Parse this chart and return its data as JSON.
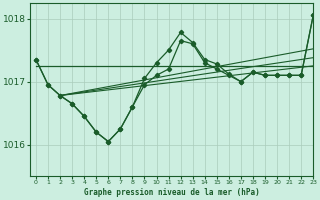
{
  "bg_color": "#cceee0",
  "grid_color": "#aaccbb",
  "line_color": "#1a5c2a",
  "title": "Graphe pression niveau de la mer (hPa)",
  "xlim": [
    -0.5,
    23
  ],
  "ylim": [
    1015.5,
    1018.25
  ],
  "yticks": [
    1016,
    1017,
    1018
  ],
  "xticks": [
    0,
    1,
    2,
    3,
    4,
    5,
    6,
    7,
    8,
    9,
    10,
    11,
    12,
    13,
    14,
    15,
    16,
    17,
    18,
    19,
    20,
    21,
    22,
    23
  ],
  "flat_line_x": [
    0,
    9,
    23
  ],
  "flat_line_y": [
    1017.25,
    1017.25,
    1017.25
  ],
  "wiggly_x": [
    0,
    1,
    2,
    3,
    4,
    5,
    6,
    7,
    8,
    9,
    10,
    11,
    12,
    13,
    14,
    15,
    16,
    17,
    18,
    19,
    20,
    21,
    22,
    23
  ],
  "wiggly_y": [
    1017.35,
    1016.95,
    1016.78,
    1016.65,
    1016.45,
    1016.2,
    1016.05,
    1016.25,
    1016.6,
    1016.95,
    1017.1,
    1017.2,
    1017.65,
    1017.6,
    1017.3,
    1017.2,
    1017.1,
    1017.0,
    1017.15,
    1017.1,
    1017.1,
    1017.1,
    1017.1,
    1018.05
  ],
  "trend1_x": [
    2,
    23
  ],
  "trend1_y": [
    1016.78,
    1017.25
  ],
  "trend2_x": [
    2,
    23
  ],
  "trend2_y": [
    1016.78,
    1017.38
  ],
  "trend3_x": [
    2,
    23
  ],
  "trend3_y": [
    1016.78,
    1017.52
  ],
  "jagged_x": [
    0,
    1,
    2,
    3,
    4,
    5,
    6,
    7,
    8,
    9,
    10,
    11,
    12,
    13,
    14,
    15,
    16,
    17,
    18,
    19,
    20,
    21,
    22,
    23
  ],
  "jagged_y": [
    1017.35,
    1016.95,
    1016.78,
    1016.65,
    1016.45,
    1016.2,
    1016.05,
    1016.25,
    1016.6,
    1017.05,
    1017.3,
    1017.5,
    1017.78,
    1017.62,
    1017.35,
    1017.28,
    1017.12,
    1017.0,
    1017.15,
    1017.1,
    1017.1,
    1017.1,
    1017.1,
    1018.05
  ]
}
